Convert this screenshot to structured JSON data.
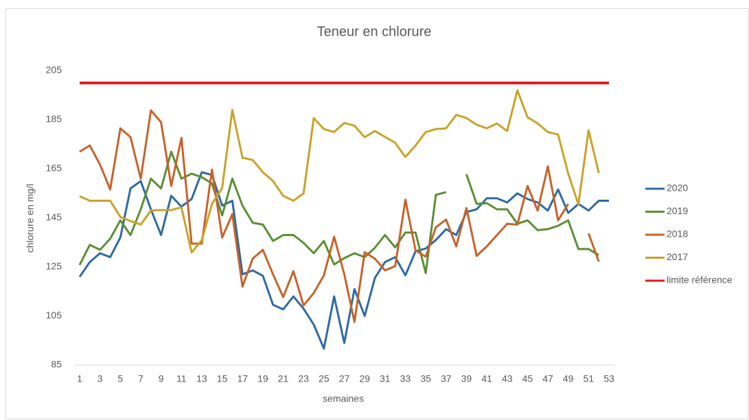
{
  "chart_data": {
    "type": "line",
    "title": "Teneur en chlorure",
    "x_label": "semaines",
    "y_label": "chlorure en mg/l",
    "categories": [
      1,
      null,
      3,
      null,
      5,
      null,
      7,
      null,
      9,
      null,
      11,
      null,
      13,
      null,
      15,
      null,
      17,
      null,
      19,
      null,
      21,
      null,
      23,
      null,
      25,
      null,
      27,
      null,
      29,
      null,
      31,
      null,
      33,
      null,
      35,
      null,
      37,
      null,
      39,
      null,
      41,
      null,
      43,
      null,
      45,
      null,
      47,
      null,
      49,
      null,
      51,
      null,
      53
    ],
    "ylim": [
      85,
      205
    ],
    "yticks": [
      85,
      105,
      125,
      145,
      165,
      185,
      205
    ],
    "grid": false,
    "legend": "right",
    "series": [
      {
        "name": "2020",
        "color": "#2e6aa1",
        "values": [
          121,
          127,
          130.6,
          129,
          137,
          157,
          160,
          148.5,
          138,
          154,
          149.6,
          152.7,
          163.6,
          162.5,
          150,
          152,
          122,
          123.6,
          121.4,
          109.6,
          107.7,
          113,
          108,
          101.5,
          91.7,
          113,
          94,
          116,
          105,
          120.5,
          127,
          129,
          121.6,
          131.4,
          132.5,
          136,
          140.4,
          138,
          147.4,
          148.5,
          153,
          153,
          151.3,
          155,
          152.7,
          151.3,
          148,
          156.6,
          147,
          150.7,
          148,
          152,
          152
        ]
      },
      {
        "name": "2019",
        "color": "#5a8f33",
        "values": [
          125.8,
          134,
          132,
          136.5,
          144,
          138,
          148.5,
          161,
          157,
          172,
          161,
          163,
          161.6,
          159,
          146,
          161,
          150,
          143,
          142.3,
          135.6,
          138,
          138,
          134.8,
          130.6,
          135.6,
          126,
          128.6,
          130.6,
          129,
          132.8,
          138,
          133,
          139,
          139,
          122.5,
          154.4,
          155.5,
          null,
          162.8,
          150.7,
          151,
          148.5,
          148.5,
          142.6,
          144,
          140,
          140.4,
          141.8,
          144,
          132.3,
          132.3,
          129.8,
          null
        ]
      },
      {
        "name": "2018",
        "color": "#c8622a",
        "values": [
          172,
          174.5,
          166.7,
          156.6,
          181.5,
          177.9,
          161,
          188.8,
          184,
          158,
          177.6,
          134.5,
          134.5,
          164.7,
          137,
          146.5,
          117,
          128.4,
          132,
          122,
          112.7,
          123.3,
          109.3,
          114.4,
          121.6,
          137.3,
          122,
          102.6,
          131,
          128.4,
          123.6,
          125.3,
          152.4,
          131.7,
          129.2,
          141.2,
          144.3,
          133.4,
          149,
          129.5,
          133.4,
          138,
          142.6,
          142.3,
          158,
          148,
          166,
          144,
          150.7,
          null,
          138.7,
          127.2,
          null
        ]
      },
      {
        "name": "2017",
        "color": "#c9a227",
        "values": [
          153.8,
          152,
          152,
          152,
          145.4,
          143.7,
          142.3,
          148,
          148.2,
          148.2,
          149.3,
          130.9,
          135.9,
          150.7,
          157.2,
          189,
          169.5,
          168.6,
          163.6,
          160,
          154,
          152,
          155,
          185.7,
          181.2,
          180,
          183.7,
          182.6,
          177.9,
          180.4,
          178,
          175.6,
          169.8,
          174.5,
          180,
          181.2,
          181.5,
          187,
          185.7,
          183,
          181.5,
          183.5,
          180.4,
          197,
          186,
          183.5,
          180,
          179,
          163,
          150.5,
          180.7,
          163.3,
          null
        ]
      },
      {
        "name": "limite référence",
        "color": "#e31a1c",
        "values": [
          200,
          200,
          200,
          200,
          200,
          200,
          200,
          200,
          200,
          200,
          200,
          200,
          200,
          200,
          200,
          200,
          200,
          200,
          200,
          200,
          200,
          200,
          200,
          200,
          200,
          200,
          200,
          200,
          200,
          200,
          200,
          200,
          200,
          200,
          200,
          200,
          200,
          200,
          200,
          200,
          200,
          200,
          200,
          200,
          200,
          200,
          200,
          200,
          200,
          200,
          200,
          200,
          200
        ]
      }
    ]
  }
}
